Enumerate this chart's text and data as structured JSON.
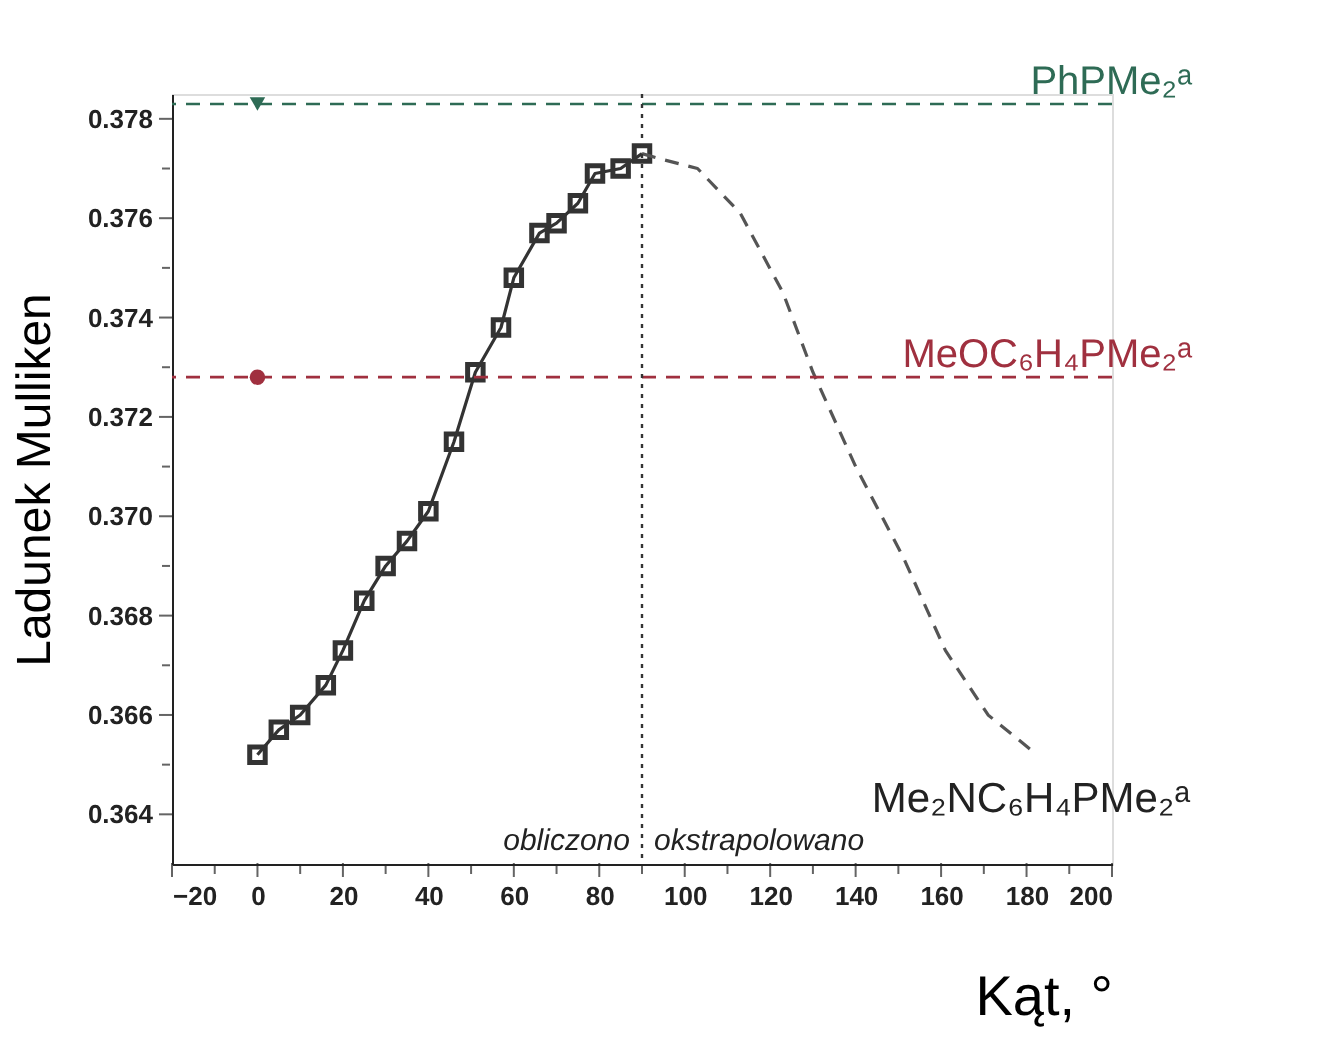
{
  "chart_data": {
    "type": "line",
    "xlabel": "Kąt, °",
    "ylabel": "Ladunek Mulliken",
    "xlim": [
      -20,
      200
    ],
    "xticks": [
      -20,
      {
        "value": -10,
        "label": null
      },
      0,
      {
        "value": 10,
        "label": null
      },
      20,
      {
        "value": 30,
        "label": null
      },
      40,
      {
        "value": 50,
        "label": null
      },
      60,
      {
        "value": 70,
        "label": null
      },
      80,
      {
        "value": 90,
        "label": null
      },
      100,
      {
        "value": 110,
        "label": null
      },
      120,
      {
        "value": 130,
        "label": null
      },
      140,
      {
        "value": 150,
        "label": null
      },
      160,
      {
        "value": 170,
        "label": null
      },
      180,
      {
        "value": 190,
        "label": null
      },
      200
    ],
    "ylim": [
      0.363,
      0.3785
    ],
    "yticks": [
      0.364,
      {
        "value": 0.365,
        "label": null
      },
      0.366,
      {
        "value": 0.367,
        "label": null
      },
      0.368,
      {
        "value": 0.369,
        "label": null
      },
      {
        "value": 0.37,
        "label": "0.370"
      },
      {
        "value": 0.371,
        "label": null
      },
      0.372,
      {
        "value": 0.373,
        "label": null
      },
      0.374,
      {
        "value": 0.375,
        "label": null
      },
      0.376,
      {
        "value": 0.377,
        "label": null
      },
      0.378
    ],
    "grid": false,
    "series": [
      {
        "type": "line",
        "color": "#333333",
        "marker": "square",
        "line_style": "solid",
        "x": [
          0,
          5,
          10,
          16,
          20,
          25,
          30,
          35,
          40,
          46,
          51,
          57,
          60,
          66,
          70,
          75,
          79,
          85,
          90
        ],
        "values": [
          0.3652,
          0.3657,
          0.366,
          0.3666,
          0.3673,
          0.3683,
          0.369,
          0.3695,
          0.3701,
          0.3715,
          0.3729,
          0.3738,
          0.3748,
          0.3757,
          0.3759,
          0.3763,
          0.3769,
          0.377,
          0.3773
        ]
      },
      {
        "type": "line",
        "color": "#555555",
        "marker": "none",
        "line_style": "dashed",
        "x": [
          90,
          94,
          103,
          113,
          123,
          130,
          140,
          151,
          161,
          171,
          181
        ],
        "values": [
          0.3773,
          0.3772,
          0.377,
          0.3761,
          0.3745,
          0.3729,
          0.371,
          0.3692,
          0.3673,
          0.366,
          0.3653
        ]
      },
      {
        "type": "scatter",
        "color": "#2e6b55",
        "marker": "triangle",
        "x": [
          0
        ],
        "values": [
          0.3783
        ]
      },
      {
        "type": "scatter",
        "color": "#a0303f",
        "marker": "circle",
        "x": [
          0
        ],
        "values": [
          0.3728
        ]
      }
    ],
    "ref_lines": [
      {
        "axis": "y",
        "value": 0.3783,
        "label": "PhPMe₂ᵃ",
        "color": "#2e6b55",
        "line_style": "dashed"
      },
      {
        "axis": "y",
        "value": 0.3728,
        "label": "MeOC₆H₄PMe₂ᵃ",
        "color": "#a0303f",
        "line_style": "dashed"
      },
      {
        "axis": "x",
        "value": 90,
        "color": "#333333",
        "line_style": "dotted"
      }
    ],
    "annotations": [
      "obliczono",
      "okstrapolowano",
      {
        "text": "Me₂NC₆H₄PMe₂ᵃ",
        "x": 181,
        "y": 0.3653
      }
    ]
  }
}
